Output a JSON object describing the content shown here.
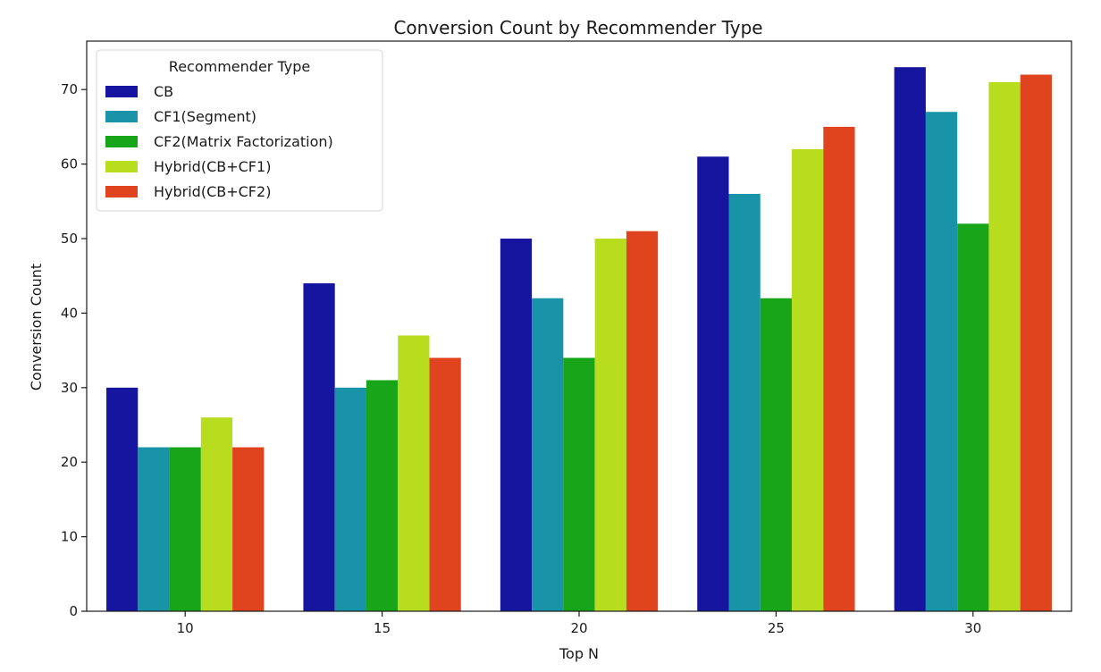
{
  "chart_data": {
    "type": "bar",
    "title": "Conversion Count by Recommender Type",
    "xlabel": "Top N",
    "ylabel": "Conversion Count",
    "categories": [
      "10",
      "15",
      "20",
      "25",
      "30"
    ],
    "ylim": [
      0,
      76.5
    ],
    "yticks": [
      0,
      10,
      20,
      30,
      40,
      50,
      60,
      70
    ],
    "grid": false,
    "legend": {
      "title": "Recommender Type",
      "placement": "top-left"
    },
    "series": [
      {
        "name": "CB",
        "color": "#1515a0",
        "values": [
          30,
          44,
          50,
          61,
          73
        ]
      },
      {
        "name": "CF1(Segment)",
        "color": "#1893a7",
        "values": [
          22,
          30,
          42,
          56,
          67
        ]
      },
      {
        "name": "CF2(Matrix Factorization)",
        "color": "#19a519",
        "values": [
          22,
          31,
          34,
          42,
          52
        ]
      },
      {
        "name": "Hybrid(CB+CF1)",
        "color": "#b8dc1e",
        "values": [
          26,
          37,
          50,
          62,
          71
        ]
      },
      {
        "name": "Hybrid(CB+CF2)",
        "color": "#e0441f",
        "values": [
          22,
          34,
          51,
          65,
          72
        ]
      }
    ]
  }
}
